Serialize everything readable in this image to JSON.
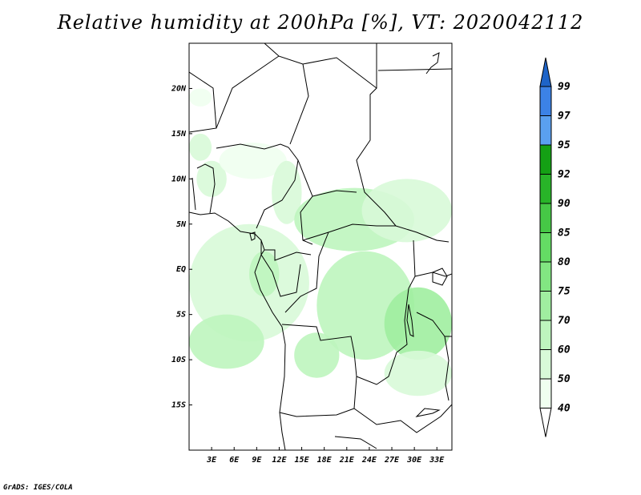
{
  "title": "Relative humidity at 200hPa [%], VT: 2020042112",
  "credit": "GrADS: IGES/COLA",
  "map": {
    "lon_range": [
      0,
      35
    ],
    "lat_range": [
      -20,
      25
    ],
    "lat_ticks": [
      {
        "lat": 20,
        "label": "20N"
      },
      {
        "lat": 15,
        "label": "15N"
      },
      {
        "lat": 10,
        "label": "10N"
      },
      {
        "lat": 5,
        "label": "5N"
      },
      {
        "lat": 0,
        "label": "EQ"
      },
      {
        "lat": -5,
        "label": "5S"
      },
      {
        "lat": -10,
        "label": "10S"
      },
      {
        "lat": -15,
        "label": "15S"
      }
    ],
    "lon_ticks": [
      {
        "lon": 3,
        "label": "3E"
      },
      {
        "lon": 6,
        "label": "6E"
      },
      {
        "lon": 9,
        "label": "9E"
      },
      {
        "lon": 12,
        "label": "12E"
      },
      {
        "lon": 15,
        "label": "15E"
      },
      {
        "lon": 18,
        "label": "18E"
      },
      {
        "lon": 21,
        "label": "21E"
      },
      {
        "lon": 24,
        "label": "24E"
      },
      {
        "lon": 27,
        "label": "27E"
      },
      {
        "lon": 30,
        "label": "30E"
      },
      {
        "lon": 33,
        "label": "33E"
      }
    ]
  },
  "colorbar": {
    "levels": [
      "40",
      "50",
      "60",
      "70",
      "75",
      "80",
      "85",
      "90",
      "92",
      "95",
      "97",
      "99"
    ],
    "colors": [
      "#f0fff0",
      "#d8fad8",
      "#bef5be",
      "#a0eea0",
      "#82e682",
      "#64dc64",
      "#46c846",
      "#28b428",
      "#14a014",
      "#5aa0f0",
      "#3c82e6",
      "#1e64c8"
    ]
  },
  "chart_data": {
    "type": "heatmap",
    "title": "Relative humidity at 200hPa [%], VT: 2020042112",
    "variable": "Relative humidity",
    "level": "200hPa",
    "units": "%",
    "valid_time": "2020042112",
    "contour_levels": [
      40,
      50,
      60,
      70,
      75,
      80,
      85,
      90,
      92,
      95,
      97,
      99
    ],
    "xrange": [
      0,
      35
    ],
    "yrange": [
      -20,
      25
    ],
    "regions": [
      {
        "lon": [
          0,
          3
        ],
        "lat": [
          12,
          15
        ],
        "level": 50
      },
      {
        "lon": [
          0,
          3
        ],
        "lat": [
          18,
          20
        ],
        "level": 40
      },
      {
        "lon": [
          1,
          5
        ],
        "lat": [
          8,
          12
        ],
        "level": 50
      },
      {
        "lon": [
          4,
          13
        ],
        "lat": [
          10,
          14
        ],
        "level": 40
      },
      {
        "lon": [
          11,
          15
        ],
        "lat": [
          5,
          12
        ],
        "level": 50
      },
      {
        "lon": [
          0,
          16
        ],
        "lat": [
          -8,
          5
        ],
        "level": 50
      },
      {
        "lon": [
          0,
          10
        ],
        "lat": [
          -11,
          -5
        ],
        "level": 60
      },
      {
        "lon": [
          8,
          12
        ],
        "lat": [
          -3,
          2
        ],
        "level": 60
      },
      {
        "lon": [
          14,
          30
        ],
        "lat": [
          2,
          9
        ],
        "level": 60
      },
      {
        "lon": [
          23,
          35
        ],
        "lat": [
          3,
          10
        ],
        "level": 50
      },
      {
        "lon": [
          17,
          30
        ],
        "lat": [
          -10,
          2
        ],
        "level": 60
      },
      {
        "lon": [
          26,
          35
        ],
        "lat": [
          -10,
          -2
        ],
        "level": 70
      },
      {
        "lon": [
          26,
          35
        ],
        "lat": [
          -14,
          -9
        ],
        "level": 50
      },
      {
        "lon": [
          14,
          20
        ],
        "lat": [
          -12,
          -7
        ],
        "level": 60
      }
    ]
  }
}
